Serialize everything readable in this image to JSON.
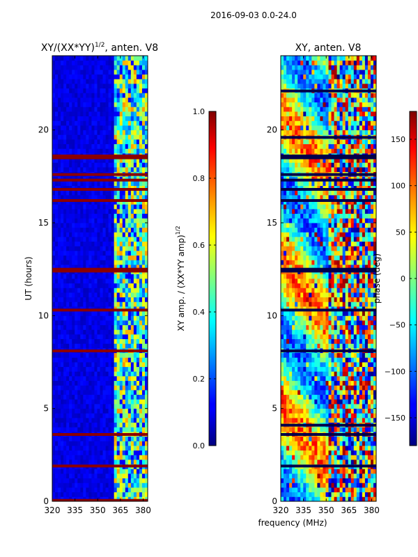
{
  "suptitle": "2016-09-03 0.0-24.0",
  "chart_data": [
    {
      "type": "heatmap",
      "title_prefix": "XY/(XX*YY)",
      "title_exp": "1/2",
      "title_suffix": ", anten. V8",
      "xlabel": "",
      "ylabel": "UT (hours)",
      "xlim": [
        320,
        383
      ],
      "ylim": [
        0,
        24
      ],
      "xticks": [
        320,
        335,
        350,
        365,
        380
      ],
      "yticks": [
        0,
        5,
        10,
        15,
        20
      ],
      "colorbar": {
        "label_prefix": "XY amp. / (XX*YY amp)",
        "label_exp": "1/2",
        "range": [
          0.0,
          1.0
        ],
        "ticks": [
          "0.0",
          "0.2",
          "0.4",
          "0.6",
          "0.8",
          "1.0"
        ],
        "colormap": "jet"
      },
      "flagged_bands_hours": [
        0.05,
        1.9,
        3.6,
        8.1,
        10.3,
        12.4,
        12.5,
        16.2,
        16.8,
        17.3,
        17.6,
        18.5,
        18.6
      ],
      "bright_freq_range_mhz": [
        360,
        383
      ]
    },
    {
      "type": "heatmap",
      "title": "XY, anten. V8",
      "xlabel": "frequency (MHz)",
      "ylabel": "",
      "xlim": [
        320,
        383
      ],
      "ylim": [
        0,
        24
      ],
      "xticks": [
        320,
        335,
        350,
        365,
        380
      ],
      "yticks": [
        0,
        5,
        10,
        15,
        20
      ],
      "colorbar": {
        "label": "phase (deg)",
        "range": [
          -180,
          180
        ],
        "ticks": [
          "150",
          "100",
          "50",
          "0",
          "−50",
          "−100",
          "−150"
        ],
        "colormap": "jet"
      },
      "flagged_bands_hours": [
        1.9,
        3.6,
        4.1,
        8.1,
        10.3,
        12.4,
        12.5,
        16.2,
        16.8,
        17.3,
        17.6,
        18.5,
        18.6,
        19.6,
        22.1
      ]
    }
  ]
}
